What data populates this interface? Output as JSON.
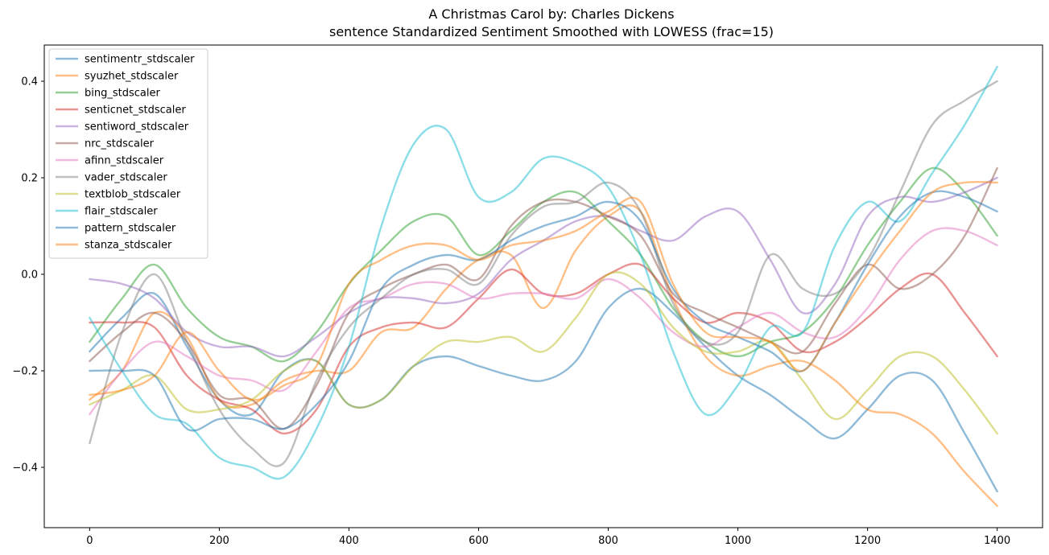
{
  "chart_data": {
    "type": "line",
    "title": "A Christmas Carol by: Charles Dickens",
    "subtitle": "sentence Standardized Sentiment Smoothed with LOWESS (frac=15)",
    "xlabel": "",
    "ylabel": "",
    "xlim": [
      -70,
      1470
    ],
    "ylim": [
      -0.525,
      0.475
    ],
    "xticks": [
      0,
      200,
      400,
      600,
      800,
      1000,
      1200,
      1400
    ],
    "xtick_labels": [
      "0",
      "200",
      "400",
      "600",
      "800",
      "1000",
      "1200",
      "1400"
    ],
    "yticks": [
      0.4,
      0.2,
      0.0,
      -0.2,
      -0.4
    ],
    "ytick_labels": [
      "0.4",
      "0.2",
      "0.0",
      "−0.2",
      "−0.4"
    ],
    "grid": false,
    "legend_position": "upper-left",
    "series": [
      {
        "name": "sentimentr_stdscaler",
        "color": "#1f77b4",
        "x": [
          0,
          50,
          100,
          150,
          200,
          250,
          300,
          350,
          400,
          450,
          500,
          550,
          600,
          650,
          700,
          750,
          800,
          850,
          900,
          950,
          1000,
          1050,
          1100,
          1150,
          1200,
          1250,
          1300,
          1350,
          1400
        ],
        "y": [
          -0.16,
          -0.09,
          -0.04,
          -0.15,
          -0.26,
          -0.29,
          -0.2,
          -0.18,
          -0.27,
          -0.26,
          -0.19,
          -0.17,
          -0.19,
          -0.21,
          -0.22,
          -0.18,
          -0.07,
          -0.03,
          -0.08,
          -0.15,
          -0.21,
          -0.25,
          -0.3,
          -0.34,
          -0.28,
          -0.21,
          -0.22,
          -0.33,
          -0.45
        ]
      },
      {
        "name": "syuzhet_stdscaler",
        "color": "#ff7f0e",
        "x": [
          0,
          50,
          100,
          150,
          200,
          250,
          300,
          350,
          400,
          450,
          500,
          550,
          600,
          650,
          700,
          750,
          800,
          850,
          900,
          950,
          1000,
          1050,
          1100,
          1150,
          1200,
          1250,
          1300,
          1350,
          1400
        ],
        "y": [
          -0.26,
          -0.2,
          -0.08,
          -0.13,
          -0.26,
          -0.27,
          -0.22,
          -0.2,
          -0.2,
          -0.12,
          -0.11,
          -0.03,
          0.03,
          0.04,
          -0.07,
          0.05,
          0.12,
          0.13,
          -0.05,
          -0.17,
          -0.21,
          -0.19,
          -0.18,
          -0.22,
          -0.28,
          -0.29,
          -0.33,
          -0.41,
          -0.48
        ]
      },
      {
        "name": "bing_stdscaler",
        "color": "#2ca02c",
        "x": [
          0,
          50,
          100,
          150,
          200,
          250,
          300,
          350,
          400,
          450,
          500,
          550,
          600,
          650,
          700,
          750,
          800,
          850,
          900,
          950,
          1000,
          1050,
          1100,
          1150,
          1200,
          1250,
          1300,
          1350,
          1400
        ],
        "y": [
          -0.14,
          -0.05,
          0.02,
          -0.07,
          -0.13,
          -0.15,
          -0.18,
          -0.12,
          -0.02,
          0.05,
          0.11,
          0.12,
          0.04,
          0.09,
          0.15,
          0.17,
          0.11,
          0.04,
          -0.07,
          -0.14,
          -0.17,
          -0.14,
          -0.12,
          -0.05,
          0.06,
          0.15,
          0.22,
          0.17,
          0.08
        ]
      },
      {
        "name": "senticnet_stdscaler",
        "color": "#d62728",
        "x": [
          0,
          50,
          100,
          150,
          200,
          250,
          300,
          350,
          400,
          450,
          500,
          550,
          600,
          650,
          700,
          750,
          800,
          850,
          900,
          950,
          1000,
          1050,
          1100,
          1150,
          1200,
          1250,
          1300,
          1350,
          1400
        ],
        "y": [
          -0.1,
          -0.1,
          -0.11,
          -0.21,
          -0.26,
          -0.28,
          -0.33,
          -0.28,
          -0.15,
          -0.11,
          -0.1,
          -0.11,
          -0.05,
          0.01,
          -0.04,
          -0.04,
          0.0,
          0.02,
          -0.05,
          -0.1,
          -0.08,
          -0.1,
          -0.16,
          -0.14,
          -0.09,
          -0.03,
          0.0,
          -0.08,
          -0.17
        ]
      },
      {
        "name": "sentiword_stdscaler",
        "color": "#9467bd",
        "x": [
          0,
          50,
          100,
          150,
          200,
          250,
          300,
          350,
          400,
          450,
          500,
          550,
          600,
          650,
          700,
          750,
          800,
          850,
          900,
          950,
          1000,
          1050,
          1100,
          1150,
          1200,
          1250,
          1300,
          1350,
          1400
        ],
        "y": [
          -0.01,
          -0.02,
          -0.05,
          -0.12,
          -0.15,
          -0.15,
          -0.17,
          -0.13,
          -0.08,
          -0.05,
          -0.05,
          -0.06,
          -0.04,
          0.03,
          0.07,
          0.11,
          0.12,
          0.09,
          0.07,
          0.12,
          0.13,
          0.03,
          -0.08,
          -0.02,
          0.12,
          0.16,
          0.15,
          0.17,
          0.2
        ]
      },
      {
        "name": "nrc_stdscaler",
        "color": "#8c564b",
        "x": [
          0,
          50,
          100,
          150,
          200,
          250,
          300,
          350,
          400,
          450,
          500,
          550,
          600,
          650,
          700,
          750,
          800,
          850,
          900,
          950,
          1000,
          1050,
          1100,
          1150,
          1200,
          1250,
          1300,
          1350,
          1400
        ],
        "y": [
          -0.18,
          -0.12,
          -0.08,
          -0.14,
          -0.25,
          -0.26,
          -0.32,
          -0.23,
          -0.08,
          -0.03,
          0.0,
          0.02,
          -0.01,
          0.1,
          0.15,
          0.15,
          0.12,
          0.08,
          -0.04,
          -0.08,
          -0.11,
          -0.14,
          -0.16,
          -0.06,
          0.02,
          -0.03,
          0.0,
          0.08,
          0.22
        ]
      },
      {
        "name": "afinn_stdscaler",
        "color": "#e377c2",
        "x": [
          0,
          50,
          100,
          150,
          200,
          250,
          300,
          350,
          400,
          450,
          500,
          550,
          600,
          650,
          700,
          750,
          800,
          850,
          900,
          950,
          1000,
          1050,
          1100,
          1150,
          1200,
          1250,
          1300,
          1350,
          1400
        ],
        "y": [
          -0.29,
          -0.2,
          -0.14,
          -0.17,
          -0.21,
          -0.22,
          -0.24,
          -0.16,
          -0.07,
          -0.05,
          -0.02,
          -0.02,
          -0.05,
          -0.04,
          -0.04,
          -0.05,
          -0.01,
          -0.05,
          -0.12,
          -0.15,
          -0.11,
          -0.08,
          -0.12,
          -0.13,
          -0.07,
          0.03,
          0.09,
          0.09,
          0.06
        ]
      },
      {
        "name": "vader_stdscaler",
        "color": "#7f7f7f",
        "x": [
          0,
          50,
          100,
          150,
          200,
          250,
          300,
          350,
          400,
          450,
          500,
          550,
          600,
          650,
          700,
          750,
          800,
          850,
          900,
          950,
          1000,
          1050,
          1100,
          1150,
          1200,
          1250,
          1300,
          1350,
          1400
        ],
        "y": [
          -0.35,
          -0.12,
          0.0,
          -0.14,
          -0.28,
          -0.36,
          -0.39,
          -0.22,
          -0.11,
          -0.05,
          0.0,
          0.01,
          -0.02,
          0.08,
          0.14,
          0.15,
          0.19,
          0.13,
          -0.06,
          -0.14,
          -0.12,
          0.04,
          -0.03,
          -0.04,
          0.03,
          0.17,
          0.31,
          0.36,
          0.4
        ]
      },
      {
        "name": "textblob_stdscaler",
        "color": "#bcbd22",
        "x": [
          0,
          50,
          100,
          150,
          200,
          250,
          300,
          350,
          400,
          450,
          500,
          550,
          600,
          650,
          700,
          750,
          800,
          850,
          900,
          950,
          1000,
          1050,
          1100,
          1150,
          1200,
          1250,
          1300,
          1350,
          1400
        ],
        "y": [
          -0.27,
          -0.24,
          -0.21,
          -0.28,
          -0.28,
          -0.26,
          -0.2,
          -0.18,
          -0.27,
          -0.26,
          -0.19,
          -0.14,
          -0.14,
          -0.13,
          -0.16,
          -0.09,
          0.0,
          -0.02,
          -0.11,
          -0.16,
          -0.16,
          -0.14,
          -0.22,
          -0.3,
          -0.24,
          -0.17,
          -0.17,
          -0.24,
          -0.33
        ]
      },
      {
        "name": "flair_stdscaler",
        "color": "#17becf",
        "x": [
          0,
          50,
          100,
          150,
          200,
          250,
          300,
          350,
          400,
          450,
          500,
          550,
          600,
          650,
          700,
          750,
          800,
          850,
          900,
          950,
          1000,
          1050,
          1100,
          1150,
          1200,
          1250,
          1300,
          1350,
          1400
        ],
        "y": [
          -0.09,
          -0.2,
          -0.29,
          -0.31,
          -0.38,
          -0.4,
          -0.42,
          -0.32,
          -0.15,
          0.1,
          0.27,
          0.3,
          0.16,
          0.17,
          0.24,
          0.23,
          0.18,
          0.04,
          -0.16,
          -0.29,
          -0.23,
          -0.11,
          -0.12,
          0.06,
          0.15,
          0.11,
          0.21,
          0.31,
          0.43
        ]
      },
      {
        "name": "pattern_stdscaler",
        "color": "#1f77b4",
        "x": [
          0,
          50,
          100,
          150,
          200,
          250,
          300,
          350,
          400,
          450,
          500,
          550,
          600,
          650,
          700,
          750,
          800,
          850,
          900,
          950,
          1000,
          1050,
          1100,
          1150,
          1200,
          1250,
          1300,
          1350,
          1400
        ],
        "y": [
          -0.2,
          -0.2,
          -0.21,
          -0.32,
          -0.3,
          -0.3,
          -0.32,
          -0.27,
          -0.18,
          -0.03,
          0.02,
          0.04,
          0.03,
          0.07,
          0.1,
          0.12,
          0.15,
          0.11,
          -0.03,
          -0.1,
          -0.13,
          -0.16,
          -0.2,
          -0.1,
          0.02,
          0.12,
          0.17,
          0.16,
          0.13
        ]
      },
      {
        "name": "stanza_stdscaler",
        "color": "#ff7f0e",
        "x": [
          0,
          50,
          100,
          150,
          200,
          250,
          300,
          350,
          400,
          450,
          500,
          550,
          600,
          650,
          700,
          750,
          800,
          850,
          900,
          950,
          1000,
          1050,
          1100,
          1150,
          1200,
          1250,
          1300,
          1350,
          1400
        ],
        "y": [
          -0.25,
          -0.24,
          -0.21,
          -0.12,
          -0.2,
          -0.26,
          -0.23,
          -0.19,
          -0.02,
          0.03,
          0.06,
          0.06,
          0.03,
          0.06,
          0.07,
          0.09,
          0.13,
          0.15,
          -0.02,
          -0.12,
          -0.13,
          -0.14,
          -0.2,
          -0.1,
          0.0,
          0.09,
          0.17,
          0.19,
          0.19
        ]
      }
    ]
  }
}
